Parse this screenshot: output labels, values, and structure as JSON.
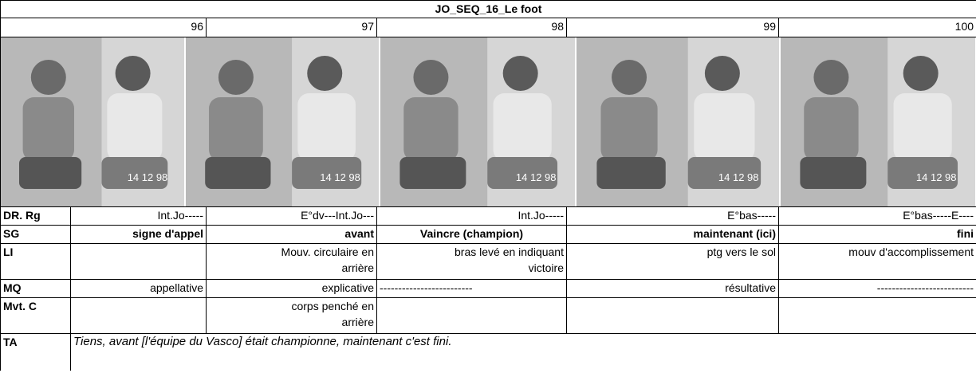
{
  "title": "JO_SEQ_16_Le foot",
  "row_labels": {
    "dr_rg": "DR. Rg",
    "sg": "SG",
    "li": "LI",
    "mq": "MQ",
    "mvt_c": "Mvt. C",
    "ta": "TA"
  },
  "frames": [
    {
      "number": 96,
      "timestamp": "14 12 98",
      "dr_rg": "Int.Jo-----",
      "sg": "signe d'appel",
      "mq": "appellative"
    },
    {
      "number": 97,
      "timestamp": "14 12 98",
      "dr_rg": "E°dv---Int.Jo---",
      "sg": "avant",
      "li": [
        "Mouv. circulaire en",
        "arrière"
      ],
      "mq": "explicative",
      "mvt_c": [
        "corps penché en",
        "arrière"
      ]
    },
    {
      "number": 98,
      "timestamp": "14 12 98",
      "dr_rg": "Int.Jo-----",
      "sg": "Vaincre (champion)",
      "li": [
        "bras levé en indiquant",
        "victoire"
      ],
      "mq": "-------------------------"
    },
    {
      "number": 99,
      "timestamp": "14 12 98",
      "dr_rg": "E°bas-----",
      "sg": "maintenant (ici)",
      "li": [
        "ptg vers le sol"
      ],
      "mq": "résultative"
    },
    {
      "number": 100,
      "timestamp": "14 12 98",
      "dr_rg": "E°bas-----E----",
      "sg": "fini",
      "li": [
        "mouv d'accomplissement"
      ],
      "mq": "--------------------------"
    }
  ],
  "ta": "Tiens, avant [l'équipe du Vasco] était championne, maintenant c'est fini."
}
